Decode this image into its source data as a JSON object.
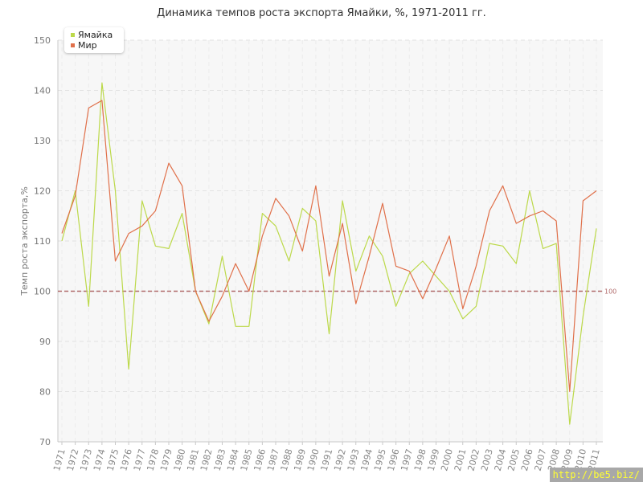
{
  "chart_data": {
    "type": "line",
    "title": "Динамика темпов роста экспорта Ямайки, %, 1971-2011 гг.",
    "ylabel": "Темп роста экспорта,%",
    "xlabel": "",
    "ylim": [
      70,
      150
    ],
    "yticks": [
      70,
      80,
      90,
      100,
      110,
      120,
      130,
      140,
      150
    ],
    "x": [
      "1971",
      "1972",
      "1973",
      "1974",
      "1975",
      "1976",
      "1977",
      "1978",
      "1979",
      "1980",
      "1981",
      "1982",
      "1983",
      "1984",
      "1985",
      "1986",
      "1987",
      "1988",
      "1989",
      "1990",
      "1991",
      "1992",
      "1993",
      "1994",
      "1995",
      "1996",
      "1997",
      "1998",
      "1999",
      "2000",
      "2001",
      "2002",
      "2003",
      "2004",
      "2005",
      "2006",
      "2007",
      "2008",
      "2009",
      "2010",
      "2011"
    ],
    "series": [
      {
        "name": "Ямайка",
        "color": "#bcd94a",
        "values": [
          110,
          120,
          97,
          141.5,
          120,
          84.5,
          118,
          109,
          108.5,
          115.5,
          100,
          93.5,
          107,
          93,
          93,
          115.5,
          113,
          106,
          116.5,
          114,
          91.5,
          118,
          104,
          111,
          107,
          97,
          103.5,
          106,
          103,
          100,
          94.5,
          97,
          109.5,
          109,
          105.5,
          120,
          108.5,
          109.5,
          73.5,
          95,
          112.5
        ]
      },
      {
        "name": "Мир",
        "color": "#e0704a",
        "values": [
          111.5,
          119,
          136.5,
          138,
          106,
          111.5,
          113,
          116,
          125.5,
          121,
          100,
          94,
          99,
          105.5,
          100,
          111,
          118.5,
          115,
          108,
          121,
          103,
          113.5,
          97.5,
          107,
          117.5,
          105,
          104,
          98.5,
          104.5,
          111,
          96.5,
          105,
          116,
          121,
          113.5,
          115,
          116,
          114,
          80,
          118,
          120
        ]
      }
    ],
    "reference_line": {
      "value": 100,
      "label": "100",
      "color": "#b06a6a"
    },
    "grid": true,
    "legend": "top-left"
  },
  "watermark": "http://be5.biz/"
}
